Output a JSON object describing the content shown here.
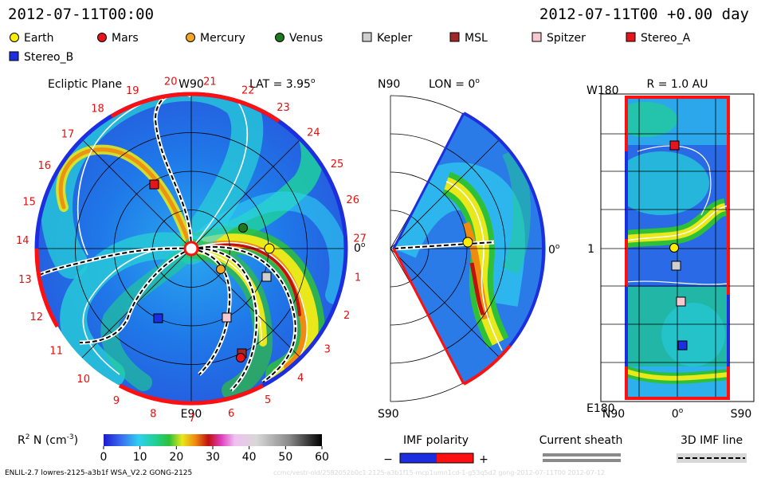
{
  "header": {
    "date_left": "2012-07-11T00:00",
    "date_right": "2012-07-11T00 +0.00 day"
  },
  "legend": [
    {
      "label": "Earth",
      "color": "#ffee00",
      "shape": "circle"
    },
    {
      "label": "Mars",
      "color": "#e8141c",
      "shape": "circle"
    },
    {
      "label": "Mercury",
      "color": "#f5a623",
      "shape": "circle"
    },
    {
      "label": "Venus",
      "color": "#1f7a1f",
      "shape": "circle"
    },
    {
      "label": "Kepler",
      "color": "#cfcfcf",
      "shape": "square"
    },
    {
      "label": "MSL",
      "color": "#a0282a",
      "shape": "square"
    },
    {
      "label": "Spitzer",
      "color": "#f7c8cf",
      "shape": "square"
    },
    {
      "label": "Stereo_A",
      "color": "#e8141c",
      "shape": "square"
    },
    {
      "label": "Stereo_B",
      "color": "#1d2ee0",
      "shape": "square"
    }
  ],
  "panels": {
    "ecliptic": {
      "title": "Ecliptic Plane",
      "lat_label": "LAT = 3.95",
      "degree_mark": "o",
      "top_label": "W90",
      "bottom_label": "E90",
      "right_label": "0",
      "carrington_labels": [
        "20",
        "21",
        "22",
        "23",
        "24",
        "25",
        "26",
        "27",
        "1",
        "2",
        "3",
        "4",
        "5",
        "6",
        "7",
        "8",
        "9",
        "10",
        "11",
        "12",
        "13",
        "14",
        "15",
        "16",
        "17",
        "18",
        "19"
      ]
    },
    "meridional": {
      "title": "LON = 0",
      "degree_mark": "o",
      "top_label": "N90",
      "bottom_label": "S90",
      "right_label": "0"
    },
    "au_map": {
      "title": "R = 1.0 AU",
      "top_left_label": "W180",
      "bottom_left_label": "E180",
      "mid_left_label": "1",
      "bottom_labels": [
        "N90",
        "0",
        "S90"
      ],
      "degree_mark": "o"
    }
  },
  "colorbar": {
    "label": "R",
    "label_sup": "2",
    "label_rest": " N (cm",
    "label_exp": "-3",
    "label_close": ")",
    "ticks": [
      "0",
      "10",
      "20",
      "30",
      "40",
      "50",
      "60"
    ]
  },
  "imf_polarity": {
    "title": "IMF polarity",
    "minus": "−",
    "plus": "+",
    "neg_color": "#1d2ee0",
    "pos_color": "#ff1010"
  },
  "current_sheath": {
    "title": "Current sheath"
  },
  "imf_line": {
    "title": "3D IMF line"
  },
  "footer": {
    "model": "ENLIL-2.7 lowres-2125-a3b1f WSA_V2.2 GONG-2125",
    "watermark": "ccmc/vestr-old/2582052b0c1 2125-a3b1f15-mcp1umn1cd-1-g53q5d2 gong-2012-07-11T00   2012-07-12"
  },
  "chart_data": [
    {
      "type": "heatmap",
      "title": "Ecliptic Plane",
      "quantity": "R^2 N (cm^-3)",
      "value_range": [
        0,
        60
      ],
      "bodies_shown": [
        "Earth",
        "Mars",
        "Mercury",
        "Venus",
        "Kepler",
        "MSL",
        "Spitzer",
        "Stereo_A",
        "Stereo_B"
      ]
    },
    {
      "type": "heatmap",
      "title": "LON = 0",
      "quantity": "R^2 N (cm^-3)",
      "value_range": [
        0,
        60
      ],
      "bodies_shown": [
        "Earth"
      ]
    },
    {
      "type": "heatmap",
      "title": "R = 1.0 AU",
      "quantity": "R^2 N (cm^-3)",
      "value_range": [
        0,
        60
      ],
      "bodies_shown": [
        "Stereo_A",
        "Earth",
        "Kepler",
        "Spitzer",
        "Stereo_B"
      ]
    }
  ]
}
